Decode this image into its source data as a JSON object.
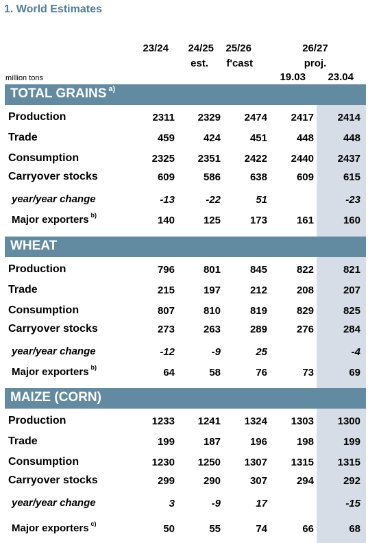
{
  "title": "1. World Estimates",
  "headers": {
    "col1": "23/24",
    "col2": "24/25",
    "col2_sub": "est.",
    "col3": "25/26",
    "col3_sub": "f'cast",
    "col45": "26/27",
    "col45_sub": "proj.",
    "col4_date": "19.03",
    "col5_date": "23.04"
  },
  "units": "million tons",
  "shaded_column_color": "#d6dde6",
  "section_color": "#628ba1",
  "sections": [
    {
      "title": "TOTAL GRAINS",
      "title_note": "a)",
      "rows": [
        {
          "label": "Production",
          "note": "",
          "values": [
            "2311",
            "2329",
            "2474",
            "2417",
            "2414"
          ]
        },
        {
          "label": "Trade",
          "note": "",
          "values": [
            "459",
            "424",
            "451",
            "448",
            "448"
          ]
        },
        {
          "label": "Consumption",
          "note": "",
          "values": [
            "2325",
            "2351",
            "2422",
            "2440",
            "2437"
          ]
        },
        {
          "label": "Carryover stocks",
          "note": "",
          "values": [
            "609",
            "586",
            "638",
            "609",
            "615"
          ]
        },
        {
          "label": "year/year change",
          "note": "",
          "values": [
            "-13",
            "-22",
            "51",
            "",
            "-23"
          ]
        },
        {
          "label": "Major exporters",
          "note": "b)",
          "values": [
            "140",
            "125",
            "173",
            "161",
            "160"
          ]
        }
      ]
    },
    {
      "title": "WHEAT",
      "title_note": "",
      "rows": [
        {
          "label": "Production",
          "note": "",
          "values": [
            "796",
            "801",
            "845",
            "822",
            "821"
          ]
        },
        {
          "label": "Trade",
          "note": "",
          "values": [
            "215",
            "197",
            "212",
            "208",
            "207"
          ]
        },
        {
          "label": "Consumption",
          "note": "",
          "values": [
            "807",
            "810",
            "819",
            "829",
            "825"
          ]
        },
        {
          "label": "Carryover stocks",
          "note": "",
          "values": [
            "273",
            "263",
            "289",
            "276",
            "284"
          ]
        },
        {
          "label": "year/year change",
          "note": "",
          "values": [
            "-12",
            "-9",
            "25",
            "",
            "-4"
          ]
        },
        {
          "label": "Major exporters",
          "note": "b)",
          "values": [
            "64",
            "58",
            "76",
            "73",
            "69"
          ]
        }
      ]
    },
    {
      "title": "MAIZE (CORN)",
      "title_note": "",
      "rows": [
        {
          "label": "Production",
          "note": "",
          "values": [
            "1233",
            "1241",
            "1324",
            "1303",
            "1300"
          ]
        },
        {
          "label": "Trade",
          "note": "",
          "values": [
            "199",
            "187",
            "196",
            "198",
            "199"
          ]
        },
        {
          "label": "Consumption",
          "note": "",
          "values": [
            "1230",
            "1250",
            "1307",
            "1315",
            "1315"
          ]
        },
        {
          "label": "Carryover stocks",
          "note": "",
          "values": [
            "299",
            "290",
            "307",
            "294",
            "292"
          ]
        },
        {
          "label": "year/year change",
          "note": "",
          "values": [
            "3",
            "-9",
            "17",
            "",
            "-15"
          ]
        },
        {
          "label": "Major exporters",
          "note": "c)",
          "values": [
            "50",
            "55",
            "74",
            "66",
            "68"
          ]
        }
      ]
    }
  ]
}
